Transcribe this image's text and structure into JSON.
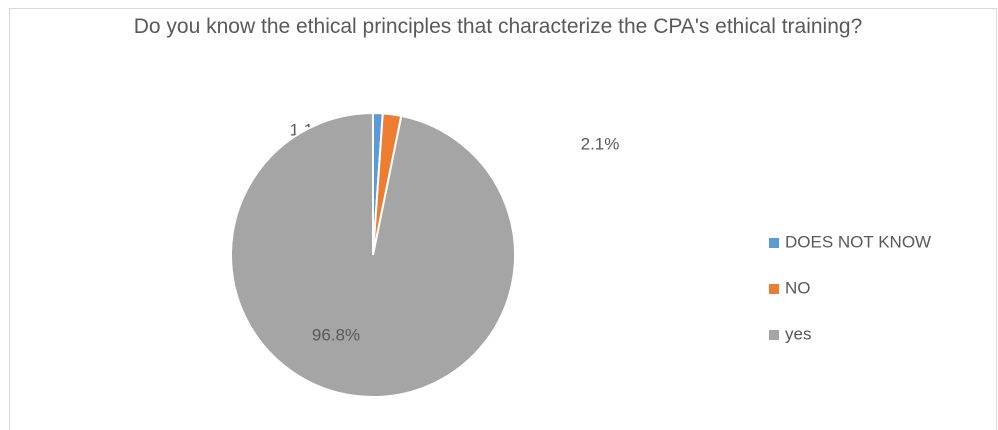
{
  "chart_data": {
    "type": "pie",
    "title": "Do you know the ethical principles that characterize the CPA's ethical training?",
    "categories": [
      "DOES NOT KNOW",
      "NO",
      "yes"
    ],
    "values": [
      1.1,
      2.1,
      96.8
    ],
    "value_labels": [
      "1.1%",
      "2.1%",
      "96.8%"
    ],
    "colors": [
      "#5b9bd5",
      "#ed7d31",
      "#a5a5a5"
    ],
    "legend": "right"
  }
}
